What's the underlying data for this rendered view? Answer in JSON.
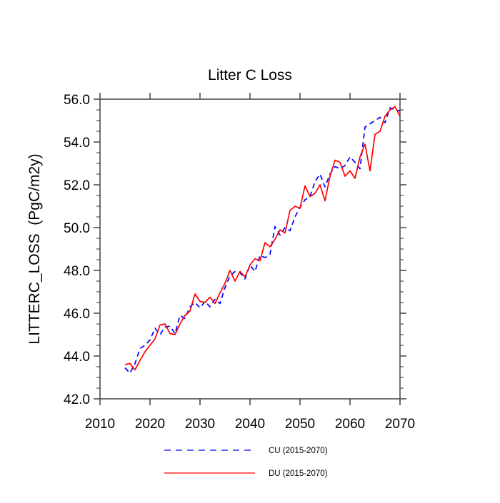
{
  "page": {
    "background": "#ffffff"
  },
  "chart_data": {
    "type": "line",
    "title": "Litter C Loss",
    "xlabel": "",
    "ylabel": "LITTERC_LOSS  (PgC/m2y)",
    "xlim": [
      2010,
      2070
    ],
    "ylim": [
      42.0,
      56.0
    ],
    "grid": false,
    "axis_color": "#4d4d4d",
    "text_color": "#000000",
    "x_ticks": [
      2010,
      2020,
      2030,
      2040,
      2050,
      2060,
      2070
    ],
    "x_tick_labels": [
      "2010",
      "2020",
      "2030",
      "2040",
      "2050",
      "2060",
      "2070"
    ],
    "y_ticks": [
      42,
      44,
      46,
      48,
      50,
      52,
      54,
      56
    ],
    "y_tick_labels": [
      "42.0",
      "44.0",
      "46.0",
      "48.0",
      "50.0",
      "52.0",
      "54.0",
      "56.0"
    ],
    "y_minor_step": 0.5,
    "legend_position": "bottom-center",
    "x": [
      2015,
      2016,
      2017,
      2018,
      2019,
      2020,
      2021,
      2022,
      2023,
      2024,
      2025,
      2026,
      2027,
      2028,
      2029,
      2030,
      2031,
      2032,
      2033,
      2034,
      2035,
      2036,
      2037,
      2038,
      2039,
      2040,
      2041,
      2042,
      2043,
      2044,
      2045,
      2046,
      2047,
      2048,
      2049,
      2050,
      2051,
      2052,
      2053,
      2054,
      2055,
      2056,
      2057,
      2058,
      2059,
      2060,
      2061,
      2062,
      2063,
      2064,
      2065,
      2066,
      2067,
      2068,
      2069,
      2070
    ],
    "series": [
      {
        "name": "CU",
        "legend_label": "CU (2015-2070)",
        "color": "#0000ff",
        "style": "dashed",
        "values": [
          43.45,
          43.2,
          43.65,
          44.35,
          44.5,
          44.75,
          45.3,
          45.0,
          45.35,
          45.4,
          45.05,
          45.9,
          45.75,
          46.3,
          46.5,
          46.25,
          46.55,
          46.3,
          46.65,
          46.45,
          47.2,
          47.75,
          47.95,
          47.9,
          47.6,
          48.25,
          47.95,
          48.7,
          48.6,
          48.75,
          50.05,
          49.65,
          50.0,
          49.85,
          50.5,
          50.95,
          51.3,
          51.45,
          52.15,
          52.5,
          51.9,
          52.5,
          52.85,
          52.75,
          52.9,
          53.3,
          53.05,
          52.75,
          54.7,
          54.85,
          55.0,
          55.15,
          54.9,
          55.6,
          55.5,
          55.45
        ]
      },
      {
        "name": "DU",
        "legend_label": "DU (2015-2070)",
        "color": "#ff0000",
        "style": "solid",
        "values": [
          43.6,
          43.65,
          43.35,
          43.8,
          44.2,
          44.5,
          44.8,
          45.45,
          45.5,
          45.05,
          45.0,
          45.5,
          45.9,
          46.1,
          46.9,
          46.55,
          46.5,
          46.75,
          46.45,
          46.95,
          47.4,
          48.0,
          47.5,
          47.95,
          47.7,
          48.25,
          48.55,
          48.45,
          49.3,
          49.1,
          49.45,
          49.9,
          49.75,
          50.8,
          51.0,
          50.9,
          51.95,
          51.45,
          51.6,
          52.0,
          51.25,
          52.4,
          53.15,
          53.05,
          52.4,
          52.65,
          52.3,
          53.3,
          53.9,
          52.65,
          54.35,
          54.5,
          55.2,
          55.5,
          55.65,
          55.2
        ]
      }
    ]
  }
}
